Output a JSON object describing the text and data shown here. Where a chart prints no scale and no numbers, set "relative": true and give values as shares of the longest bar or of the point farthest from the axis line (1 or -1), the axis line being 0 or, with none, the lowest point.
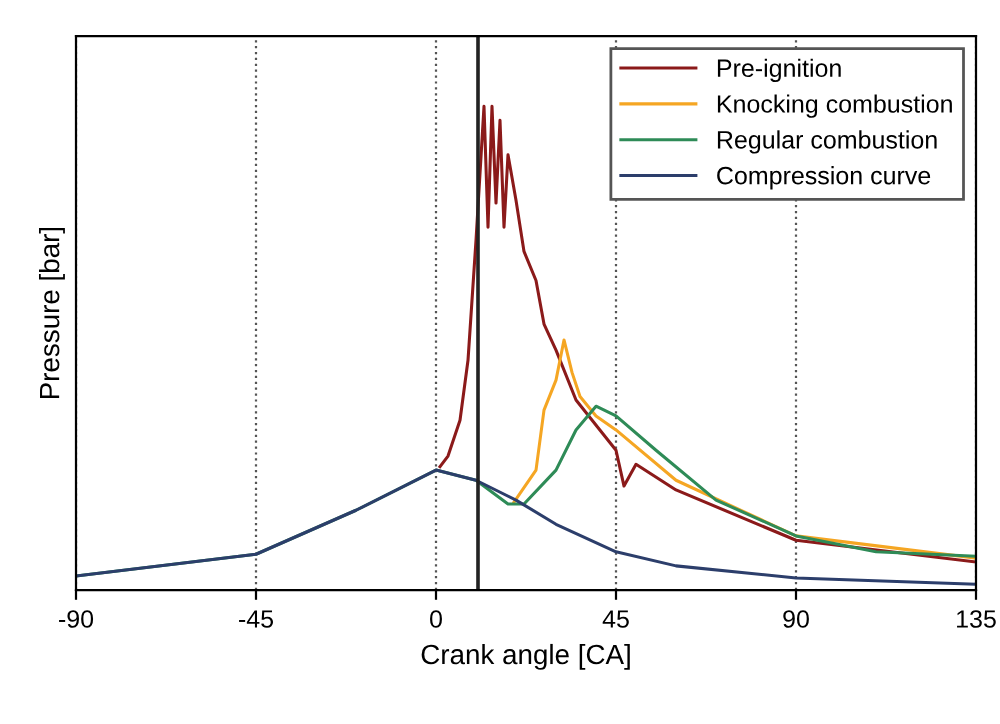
{
  "chart_data": {
    "type": "line",
    "relative": true,
    "xlabel": "Crank angle [CA]",
    "ylabel": "Pressure [bar]",
    "xlim": [
      -90,
      135
    ],
    "xticks": [
      -90,
      -45,
      0,
      45,
      90,
      135
    ],
    "grid": "x",
    "legend": "top right",
    "ref_lines": [
      {
        "axis": "x",
        "value": 10.5,
        "color": "#222222"
      }
    ],
    "series": [
      {
        "name": "Pre-ignition",
        "color": "#8b1a1a",
        "x": [
          1,
          3,
          6,
          8,
          10,
          12,
          13,
          14,
          15,
          16,
          17,
          18,
          20,
          22,
          25,
          27,
          30,
          35,
          45,
          47,
          50,
          60,
          90,
          135
        ],
        "values": [
          0.255,
          0.277,
          0.351,
          0.475,
          0.723,
          1.0,
          0.75,
          1.0,
          0.8,
          0.971,
          0.75,
          0.9,
          0.806,
          0.7,
          0.64,
          0.55,
          0.496,
          0.393,
          0.289,
          0.215,
          0.26,
          0.207,
          0.103,
          0.058
        ]
      },
      {
        "name": "Knocking combustion",
        "color": "#f5a623",
        "x": [
          19.5,
          25,
          27,
          30,
          32,
          34,
          36,
          40,
          45,
          60,
          90,
          135
        ],
        "values": [
          0.182,
          0.248,
          0.372,
          0.434,
          0.517,
          0.45,
          0.4,
          0.36,
          0.331,
          0.227,
          0.112,
          0.066
        ]
      },
      {
        "name": "Regular combustion",
        "color": "#2e8b57",
        "x": [
          -90,
          -45,
          -20,
          0,
          10,
          18,
          22,
          30,
          35,
          40,
          45,
          55,
          70,
          90,
          110,
          135
        ],
        "values": [
          0.029,
          0.074,
          0.165,
          0.248,
          0.227,
          0.178,
          0.178,
          0.248,
          0.331,
          0.38,
          0.36,
          0.289,
          0.186,
          0.112,
          0.079,
          0.07
        ]
      },
      {
        "name": "Compression curve",
        "color": "#2c3e6b",
        "x": [
          -90,
          -45,
          -20,
          0,
          10,
          20,
          30,
          45,
          60,
          90,
          135
        ],
        "values": [
          0.029,
          0.074,
          0.165,
          0.248,
          0.227,
          0.186,
          0.136,
          0.079,
          0.05,
          0.025,
          0.012
        ]
      }
    ]
  }
}
